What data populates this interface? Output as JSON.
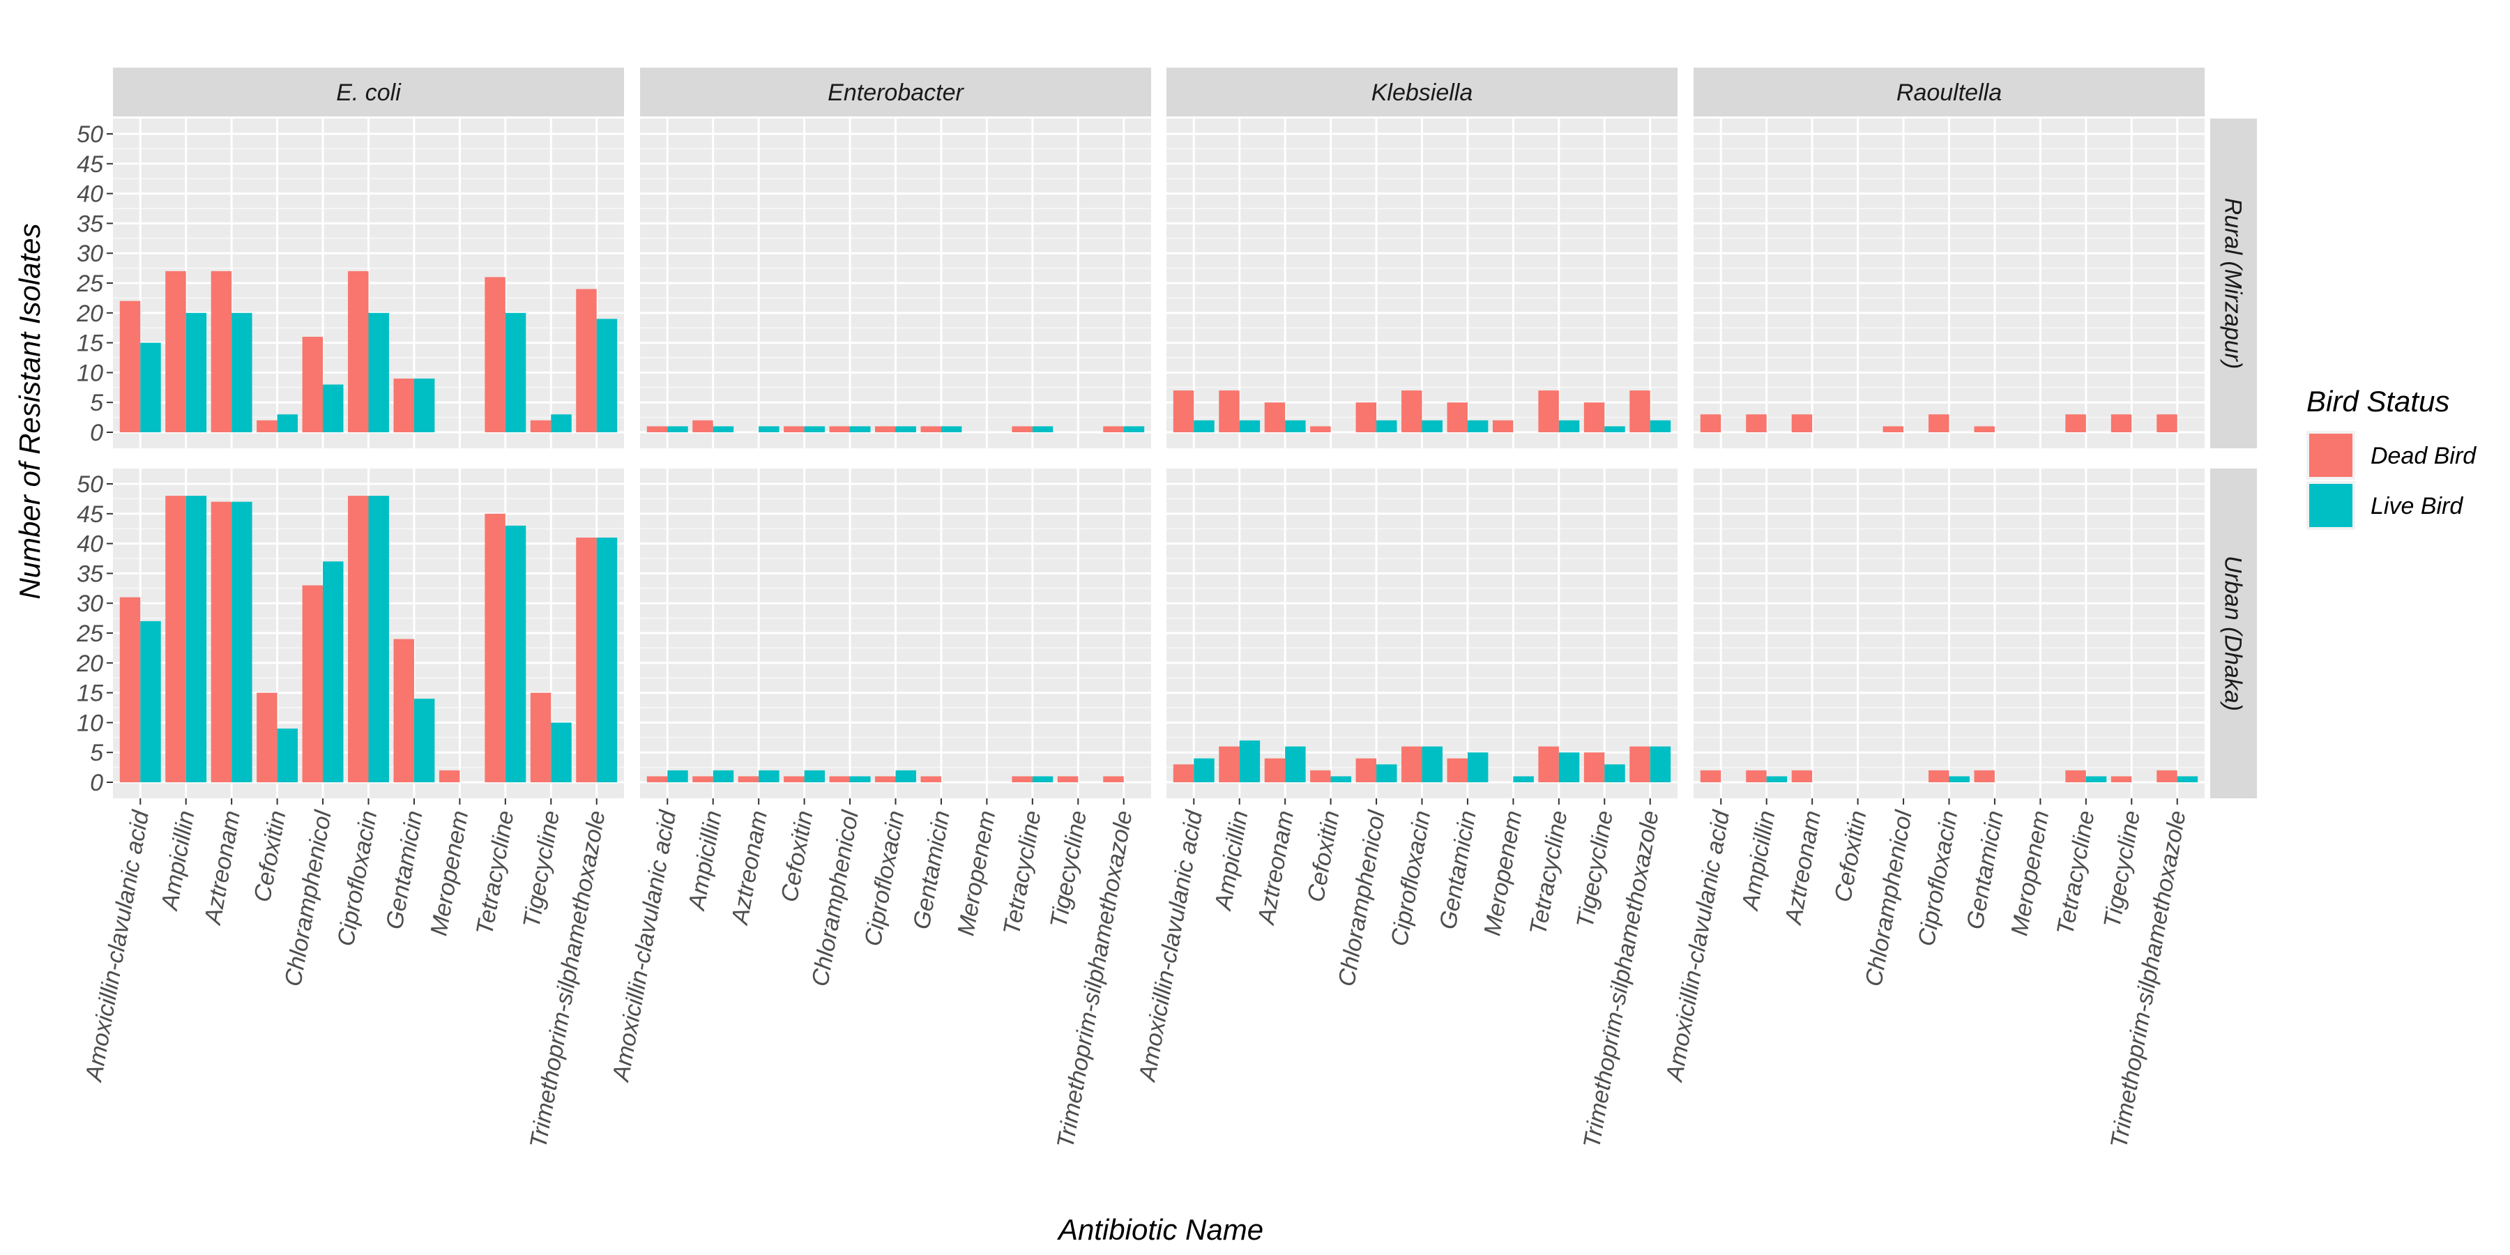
{
  "chart_data": {
    "type": "bar",
    "title": "",
    "xlabel": "Antibiotic Name",
    "ylabel": "Number of Resistant Isolates",
    "ylim": [
      0,
      50
    ],
    "yticks": [
      0,
      5,
      10,
      15,
      20,
      25,
      30,
      35,
      40,
      45,
      50
    ],
    "grid": true,
    "legend_position": "right",
    "legend": {
      "title": "Bird Status",
      "entries": [
        {
          "name": "Dead Bird",
          "color": "#F8766D"
        },
        {
          "name": "Live Bird",
          "color": "#00BFC4"
        }
      ]
    },
    "categories": [
      "Amoxicillin-clavulanic acid",
      "Ampicillin",
      "Aztreonam",
      "Cefoxitin",
      "Chloramphenicol",
      "Ciprofloxacin",
      "Gentamicin",
      "Meropenem",
      "Tetracycline",
      "Tigecycline",
      "Trimethoprim-silphamethoxazole"
    ],
    "columns": [
      "E. coli",
      "Enterobacter",
      "Klebsiella",
      "Raoultella"
    ],
    "rows": [
      "Rural (Mirzapur)",
      "Urban (Dhaka)"
    ],
    "panels": [
      {
        "row": "Rural (Mirzapur)",
        "column": "E. coli",
        "series": [
          {
            "name": "Dead Bird",
            "values": [
              22,
              27,
              27,
              2,
              16,
              27,
              9,
              0,
              26,
              2,
              24
            ]
          },
          {
            "name": "Live Bird",
            "values": [
              15,
              20,
              20,
              3,
              8,
              20,
              9,
              0,
              20,
              3,
              19
            ]
          }
        ]
      },
      {
        "row": "Rural (Mirzapur)",
        "column": "Enterobacter",
        "series": [
          {
            "name": "Dead Bird",
            "values": [
              1,
              2,
              0,
              1,
              1,
              1,
              1,
              0,
              1,
              0,
              1
            ]
          },
          {
            "name": "Live Bird",
            "values": [
              1,
              1,
              1,
              1,
              1,
              1,
              1,
              0,
              1,
              0,
              1
            ]
          }
        ]
      },
      {
        "row": "Rural (Mirzapur)",
        "column": "Klebsiella",
        "series": [
          {
            "name": "Dead Bird",
            "values": [
              7,
              7,
              5,
              1,
              5,
              7,
              5,
              2,
              7,
              5,
              7
            ]
          },
          {
            "name": "Live Bird",
            "values": [
              2,
              2,
              2,
              0,
              2,
              2,
              2,
              0,
              2,
              1,
              2
            ]
          }
        ]
      },
      {
        "row": "Rural (Mirzapur)",
        "column": "Raoultella",
        "series": [
          {
            "name": "Dead Bird",
            "values": [
              3,
              3,
              3,
              0,
              1,
              3,
              1,
              0,
              3,
              3,
              3
            ]
          },
          {
            "name": "Live Bird",
            "values": [
              0,
              0,
              0,
              0,
              0,
              0,
              0,
              0,
              0,
              0,
              0
            ]
          }
        ]
      },
      {
        "row": "Urban (Dhaka)",
        "column": "E. coli",
        "series": [
          {
            "name": "Dead Bird",
            "values": [
              31,
              48,
              47,
              15,
              33,
              48,
              24,
              2,
              45,
              15,
              41
            ]
          },
          {
            "name": "Live Bird",
            "values": [
              27,
              48,
              47,
              9,
              37,
              48,
              14,
              0,
              43,
              10,
              41
            ]
          }
        ]
      },
      {
        "row": "Urban (Dhaka)",
        "column": "Enterobacter",
        "series": [
          {
            "name": "Dead Bird",
            "values": [
              1,
              1,
              1,
              1,
              1,
              1,
              1,
              0,
              1,
              1,
              1
            ]
          },
          {
            "name": "Live Bird",
            "values": [
              2,
              2,
              2,
              2,
              1,
              2,
              0,
              0,
              1,
              0,
              0
            ]
          }
        ]
      },
      {
        "row": "Urban (Dhaka)",
        "column": "Klebsiella",
        "series": [
          {
            "name": "Dead Bird",
            "values": [
              3,
              6,
              4,
              2,
              4,
              6,
              4,
              0,
              6,
              5,
              6
            ]
          },
          {
            "name": "Live Bird",
            "values": [
              4,
              7,
              6,
              1,
              3,
              6,
              5,
              1,
              5,
              3,
              6
            ]
          }
        ]
      },
      {
        "row": "Urban (Dhaka)",
        "column": "Raoultella",
        "series": [
          {
            "name": "Dead Bird",
            "values": [
              2,
              2,
              2,
              0,
              0,
              2,
              2,
              0,
              2,
              1,
              2
            ]
          },
          {
            "name": "Live Bird",
            "values": [
              0,
              1,
              0,
              0,
              0,
              1,
              0,
              0,
              1,
              0,
              1
            ]
          }
        ]
      }
    ]
  }
}
